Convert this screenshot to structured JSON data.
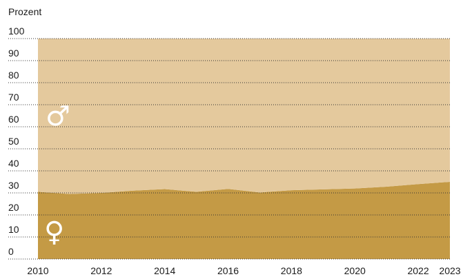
{
  "chart_data": {
    "type": "stacked-area",
    "y_label": "Prozent",
    "x": [
      2010,
      2011,
      2012,
      2013,
      2014,
      2015,
      2016,
      2017,
      2018,
      2019,
      2020,
      2021,
      2022,
      2023
    ],
    "series": [
      {
        "name": "♀",
        "color": "#c49a45",
        "values": [
          30.5,
          29.5,
          30,
          31,
          31.7,
          30.5,
          31.8,
          30.2,
          31.2,
          31.6,
          32,
          32.8,
          34,
          35
        ]
      },
      {
        "name": "♂",
        "color": "#e4c99d",
        "values": [
          69.5,
          70.5,
          70,
          69,
          68.3,
          69.5,
          68.2,
          69.8,
          68.8,
          68.4,
          68,
          67.2,
          66,
          65
        ]
      }
    ],
    "xlim": [
      2010,
      2023
    ],
    "xticks": [
      2010,
      2012,
      2014,
      2016,
      2018,
      2020,
      2022,
      2023
    ],
    "ylim": [
      0,
      100
    ],
    "yticks": [
      0,
      10,
      20,
      30,
      40,
      50,
      60,
      70,
      80,
      90,
      100
    ],
    "grid": true
  }
}
